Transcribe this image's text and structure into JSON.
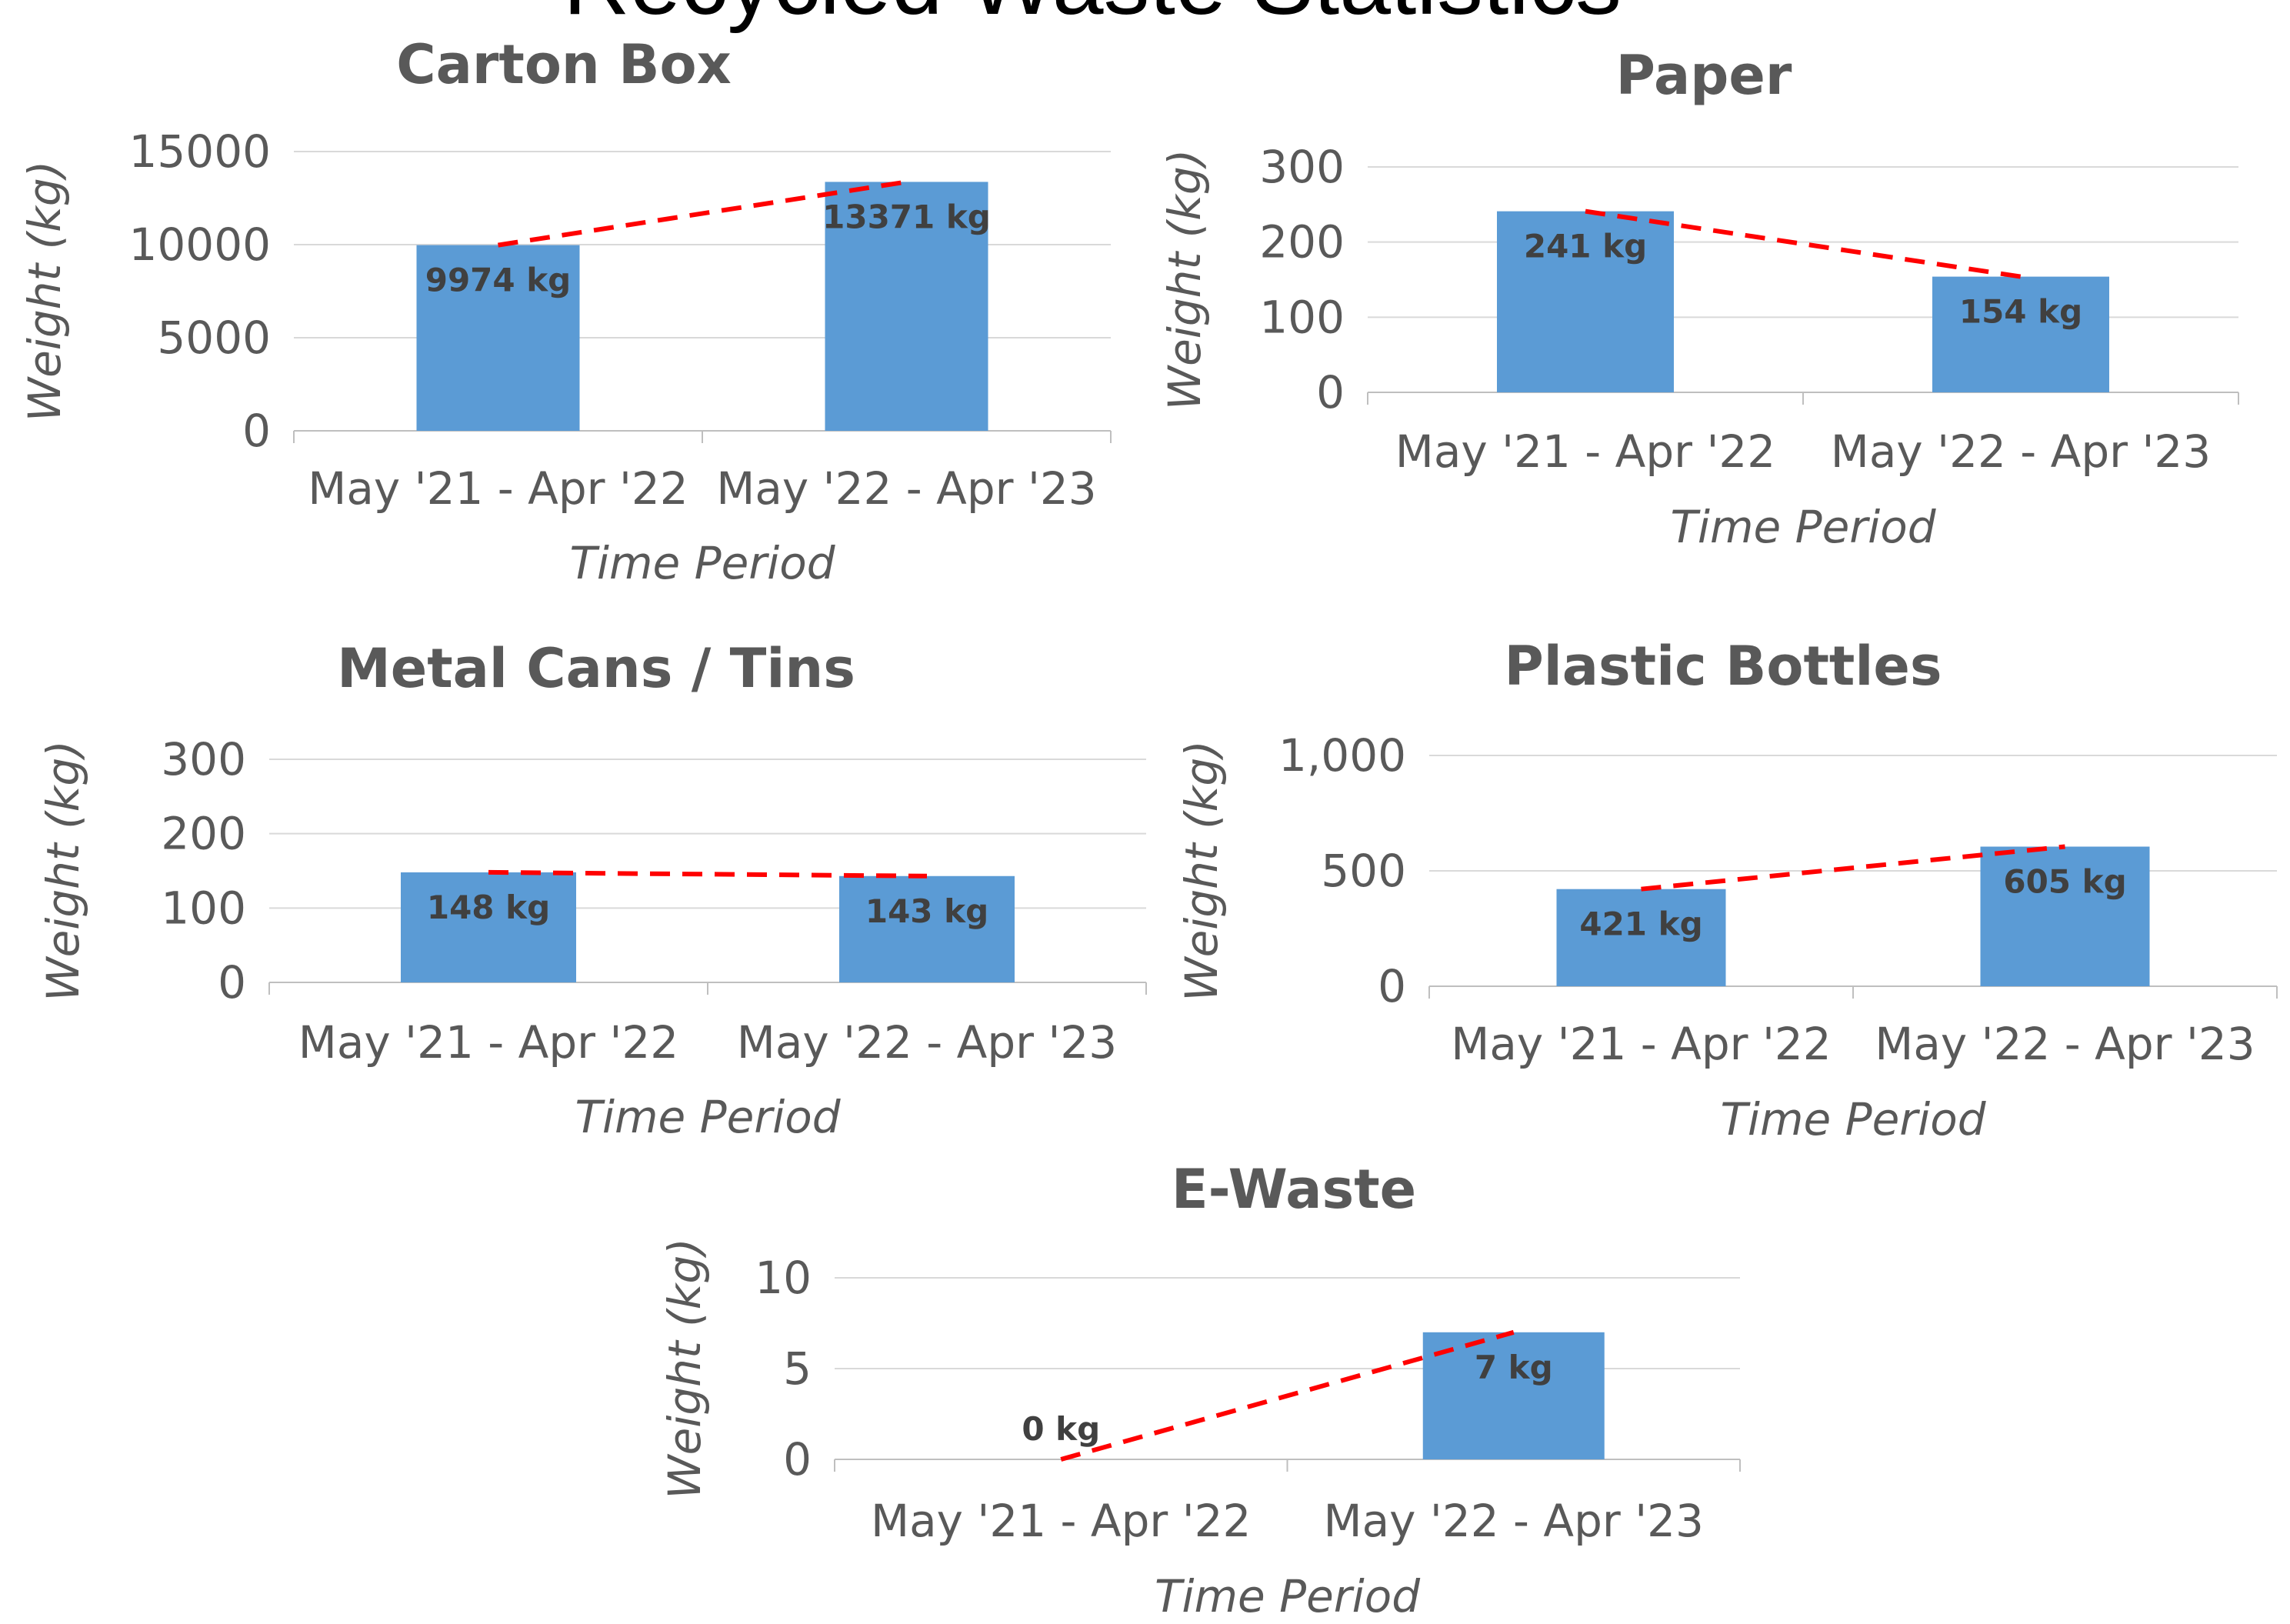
{
  "page_title": "Recycled Waste Statistics",
  "colors": {
    "bar": "#5b9bd5",
    "trend": "#ff0000",
    "grid": "#d9d9d9",
    "axis": "#bfbfbf",
    "text": "#595959"
  },
  "chart_data": [
    {
      "type": "bar",
      "title": "Carton Box",
      "xlabel": "Time Period",
      "ylabel": "Weight (kg)",
      "categories": [
        "May '21 - Apr '22",
        "May '22 - Apr '23"
      ],
      "values": [
        9974,
        13371
      ],
      "value_labels": [
        "9974 kg",
        "13371 kg"
      ],
      "ylim": [
        0,
        15000
      ],
      "yticks": [
        "0",
        "5000",
        "10000",
        "15000"
      ],
      "grid": true,
      "trendline": "linear, dashed red"
    },
    {
      "type": "bar",
      "title": "Paper",
      "xlabel": "Time Period",
      "ylabel": "Weight (kg)",
      "categories": [
        "May '21 - Apr '22",
        "May '22 - Apr '23"
      ],
      "values": [
        241,
        154
      ],
      "value_labels": [
        "241 kg",
        "154 kg"
      ],
      "ylim": [
        0,
        300
      ],
      "yticks": [
        "0",
        "100",
        "200",
        "300"
      ],
      "grid": true,
      "trendline": "linear, dashed red"
    },
    {
      "type": "bar",
      "title": "Metal Cans / Tins",
      "xlabel": "Time Period",
      "ylabel": "Weight (kg)",
      "categories": [
        "May '21 - Apr '22",
        "May '22 - Apr '23"
      ],
      "values": [
        148,
        143
      ],
      "value_labels": [
        "148 kg",
        "143 kg"
      ],
      "ylim": [
        0,
        300
      ],
      "yticks": [
        "0",
        "100",
        "200",
        "300"
      ],
      "grid": true,
      "trendline": "linear, dashed red"
    },
    {
      "type": "bar",
      "title": "Plastic Bottles",
      "xlabel": "Time Period",
      "ylabel": "Weight (kg)",
      "categories": [
        "May '21 - Apr '22",
        "May '22 - Apr '23"
      ],
      "values": [
        421,
        605
      ],
      "value_labels": [
        "421 kg",
        "605 kg"
      ],
      "ylim": [
        0,
        1000
      ],
      "yticks": [
        "0",
        "500",
        "1,000"
      ],
      "grid": true,
      "trendline": "linear, dashed red"
    },
    {
      "type": "bar",
      "title": "E-Waste",
      "xlabel": "Time Period",
      "ylabel": "Weight (kg)",
      "categories": [
        "May '21 - Apr '22",
        "May '22 - Apr '23"
      ],
      "values": [
        0,
        7
      ],
      "value_labels": [
        "0 kg",
        "7 kg"
      ],
      "ylim": [
        0,
        10
      ],
      "yticks": [
        "0",
        "5",
        "10"
      ],
      "grid": true,
      "trendline": "linear, dashed red"
    }
  ]
}
